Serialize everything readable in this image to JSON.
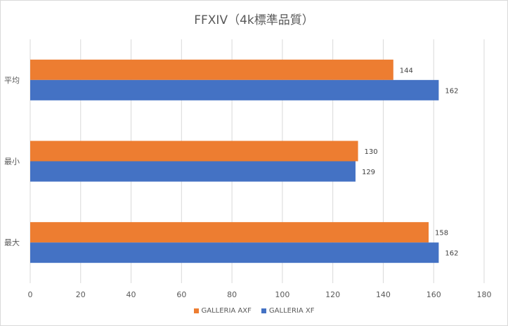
{
  "chart_data": {
    "type": "bar",
    "orientation": "horizontal",
    "title": "FFXIV（4k標準品質）",
    "categories": [
      "平均",
      "最小",
      "最大"
    ],
    "series": [
      {
        "name": "GALLERIA AXF",
        "color": "#ED7D31",
        "values": [
          144,
          130,
          158
        ]
      },
      {
        "name": "GALLERIA XF",
        "color": "#4472C4",
        "values": [
          162,
          129,
          162
        ]
      }
    ],
    "xlim": [
      0,
      180
    ],
    "xticks": [
      0,
      20,
      40,
      60,
      80,
      100,
      120,
      140,
      160,
      180
    ],
    "grid": true,
    "data_labels": true,
    "legend_position": "bottom"
  }
}
